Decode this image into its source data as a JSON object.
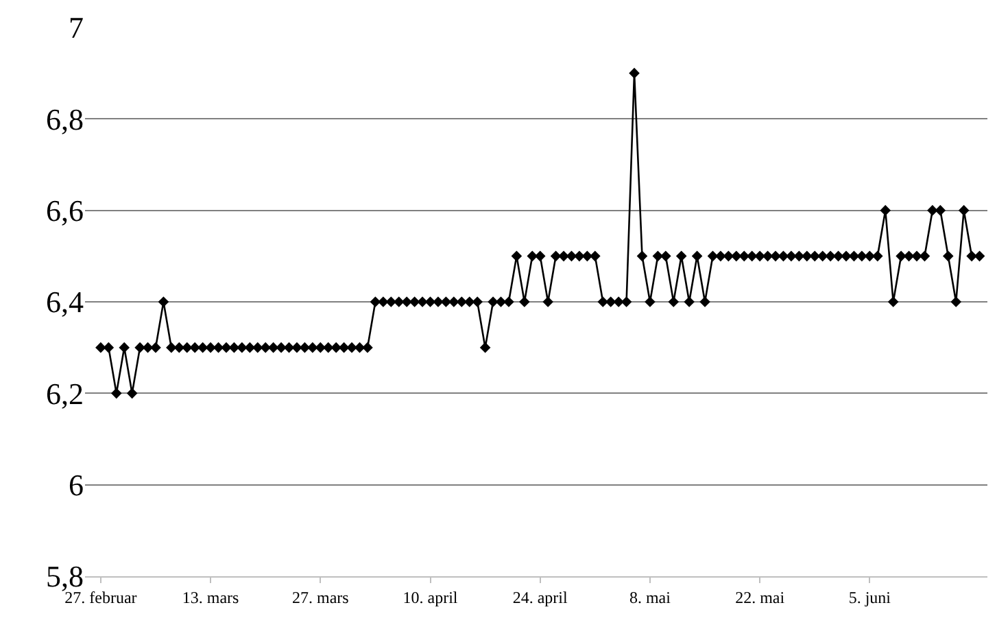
{
  "chart_data": {
    "type": "line",
    "x": [
      "--02-27",
      "--02-28",
      "--03-01",
      "--03-02",
      "--03-03",
      "--03-04",
      "--03-05",
      "--03-06",
      "--03-07",
      "--03-08",
      "--03-09",
      "--03-10",
      "--03-11",
      "--03-12",
      "--03-13",
      "--03-14",
      "--03-15",
      "--03-16",
      "--03-17",
      "--03-18",
      "--03-19",
      "--03-20",
      "--03-21",
      "--03-22",
      "--03-23",
      "--03-24",
      "--03-25",
      "--03-26",
      "--03-27",
      "--03-28",
      "--03-29",
      "--03-30",
      "--03-31",
      "--04-01",
      "--04-02",
      "--04-03",
      "--04-04",
      "--04-05",
      "--04-06",
      "--04-07",
      "--04-08",
      "--04-09",
      "--04-10",
      "--04-11",
      "--04-12",
      "--04-13",
      "--04-14",
      "--04-15",
      "--04-16",
      "--04-17",
      "--04-18",
      "--04-19",
      "--04-20",
      "--04-21",
      "--04-22",
      "--04-23",
      "--04-24",
      "--04-25",
      "--04-26",
      "--04-27",
      "--04-28",
      "--04-29",
      "--04-30",
      "--05-01",
      "--05-02",
      "--05-03",
      "--05-04",
      "--05-05",
      "--05-06",
      "--05-07",
      "--05-08",
      "--05-09",
      "--05-10",
      "--05-11",
      "--05-12",
      "--05-13",
      "--05-14",
      "--05-15",
      "--05-16",
      "--05-17",
      "--05-18",
      "--05-19",
      "--05-20",
      "--05-21",
      "--05-22",
      "--05-23",
      "--05-24",
      "--05-25",
      "--05-26",
      "--05-27",
      "--05-28",
      "--05-29",
      "--05-30",
      "--05-31",
      "--06-01",
      "--06-02",
      "--06-03",
      "--06-04",
      "--06-05",
      "--06-06",
      "--06-07",
      "--06-08",
      "--06-09",
      "--06-10",
      "--06-11",
      "--06-12",
      "--06-13",
      "--06-14",
      "--06-15",
      "--06-16",
      "--06-17",
      "--06-18",
      "--06-19"
    ],
    "series": [
      {
        "color": "#000000",
        "values": [
          6.3,
          6.3,
          6.2,
          6.3,
          6.2,
          6.3,
          6.3,
          6.3,
          6.4,
          6.3,
          6.3,
          6.3,
          6.3,
          6.3,
          6.3,
          6.3,
          6.3,
          6.3,
          6.3,
          6.3,
          6.3,
          6.3,
          6.3,
          6.3,
          6.3,
          6.3,
          6.3,
          6.3,
          6.3,
          6.3,
          6.3,
          6.3,
          6.3,
          6.3,
          6.3,
          6.4,
          6.4,
          6.4,
          6.4,
          6.4,
          6.4,
          6.4,
          6.4,
          6.4,
          6.4,
          6.4,
          6.4,
          6.4,
          6.4,
          6.3,
          6.4,
          6.4,
          6.4,
          6.5,
          6.4,
          6.5,
          6.5,
          6.4,
          6.5,
          6.5,
          6.5,
          6.5,
          6.5,
          6.5,
          6.4,
          6.4,
          6.4,
          6.4,
          6.9,
          6.5,
          6.4,
          6.5,
          6.5,
          6.4,
          6.5,
          6.4,
          6.5,
          6.4,
          6.5,
          6.5,
          6.5,
          6.5,
          6.5,
          6.5,
          6.5,
          6.5,
          6.5,
          6.5,
          6.5,
          6.5,
          6.5,
          6.5,
          6.5,
          6.5,
          6.5,
          6.5,
          6.5,
          6.5,
          6.5,
          6.5,
          6.6,
          6.4,
          6.5,
          6.5,
          6.5,
          6.5,
          6.6,
          6.6,
          6.5,
          6.4,
          6.6,
          6.5,
          6.5
        ]
      }
    ],
    "xlim": [
      "--02-25",
      "--06-20"
    ],
    "xticks": [
      {
        "value": "--02-27",
        "label": "27. februar"
      },
      {
        "value": "--03-13",
        "label": "13. mars"
      },
      {
        "value": "--03-27",
        "label": "27. mars"
      },
      {
        "value": "--04-10",
        "label": "10. april"
      },
      {
        "value": "--04-24",
        "label": "24. april"
      },
      {
        "value": "--05-08",
        "label": "8. mai"
      },
      {
        "value": "--05-22",
        "label": "22. mai"
      },
      {
        "value": "--06-05",
        "label": "5. juni"
      }
    ],
    "ylim": [
      5.8,
      7
    ],
    "yticks": [
      {
        "value": 5.8,
        "label": "5,8"
      },
      6,
      {
        "value": 6.2,
        "label": "6,2"
      },
      {
        "value": 6.4,
        "label": "6,4"
      },
      {
        "value": 6.6,
        "label": "6,6"
      },
      {
        "value": 6.8,
        "label": "6,8"
      },
      7
    ],
    "grid": "y",
    "marker": "diamond",
    "line_style": "solid"
  }
}
